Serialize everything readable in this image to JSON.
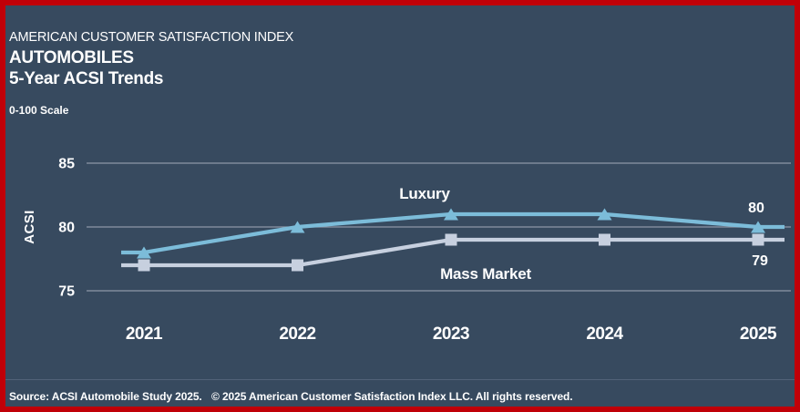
{
  "header": {
    "eyebrow": "AMERICAN CUSTOMER SATISFACTION INDEX",
    "title": "AUTOMOBILES",
    "subtitle": "5-Year ACSI Trends",
    "scale_note": "0-100 Scale"
  },
  "chart_data": {
    "type": "line",
    "title": "5-Year ACSI Trends",
    "xlabel": "",
    "ylabel": "ACSI",
    "x": [
      "2021",
      "2022",
      "2023",
      "2024",
      "2025"
    ],
    "yticks": [
      85,
      80,
      75
    ],
    "ylim": [
      73.5,
      86.5
    ],
    "grid": "horizontal-only",
    "legend_position": "inline-annotations",
    "series": [
      {
        "name": "Luxury",
        "values": [
          78,
          80,
          81,
          81,
          80
        ],
        "color": "#7cbcd9",
        "marker": "triangle-up",
        "end_label": "80"
      },
      {
        "name": "Mass Market",
        "values": [
          77,
          77,
          79,
          79,
          79
        ],
        "color": "#c7d0df",
        "marker": "square",
        "end_label": "79"
      }
    ]
  },
  "footer": {
    "source": "Source: ACSI Automobile Study 2025.",
    "copyright": "© 2025 American Customer Satisfaction Index LLC. All rights reserved."
  },
  "colors": {
    "background": "#374a5f",
    "frame": "#c00008",
    "text": "#ffffff",
    "gridline": "#97a1ae",
    "luxury": "#7cbcd9",
    "mass_market": "#c7d0df"
  }
}
